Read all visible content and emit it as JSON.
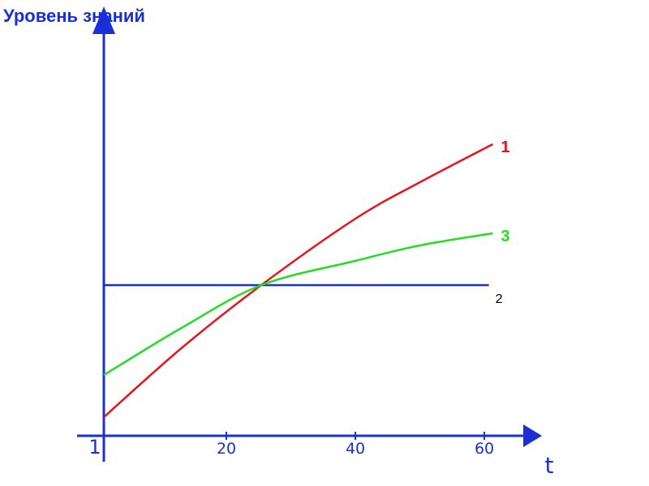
{
  "chart_data": {
    "type": "line",
    "title": "",
    "ylabel": "Уровень знаний",
    "xlabel": "t",
    "x_ticks": [
      "1",
      "20",
      "40",
      "60"
    ],
    "xlim": [
      1,
      65
    ],
    "ylim": [
      0,
      100
    ],
    "grid": false,
    "legend": "none",
    "series": [
      {
        "name": "1",
        "color": "#e8141a",
        "x": [
          1,
          13,
          25.4,
          40,
          50,
          61.3
        ],
        "y": [
          4.6,
          21.6,
          37.2,
          53.6,
          62.6,
          72
        ]
      },
      {
        "name": "2",
        "color": "#1a2fd6",
        "x": [
          1,
          60.7
        ],
        "y": [
          37.2,
          37.2
        ]
      },
      {
        "name": "3",
        "color": "#22dd22",
        "x": [
          1,
          13,
          25.4,
          40,
          50,
          61.3
        ],
        "y": [
          15,
          26.6,
          37.2,
          43.2,
          47,
          50
        ]
      }
    ],
    "label_colors": {
      "1": "#e8141a",
      "2": "#000000",
      "3": "#22dd22"
    },
    "axis_color": "#1a2fd6"
  }
}
